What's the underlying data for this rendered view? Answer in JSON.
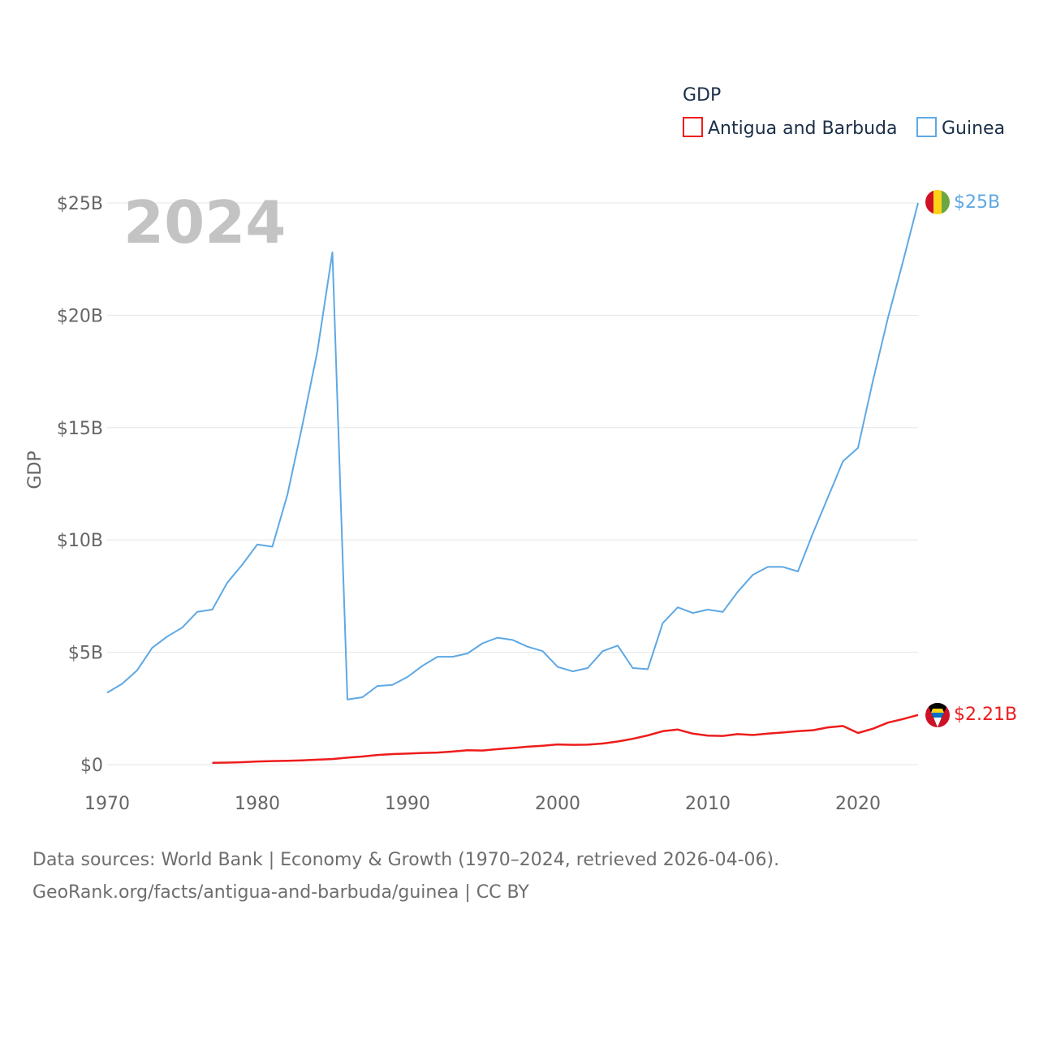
{
  "chart_data": {
    "type": "line",
    "legend_title": "GDP",
    "ylabel": "GDP",
    "year_label": "2024",
    "ylim": [
      0,
      25000000000
    ],
    "xlim": [
      1970,
      2024
    ],
    "y_ticks": [
      {
        "value": 0,
        "label": "$0"
      },
      {
        "value": 5000000000,
        "label": "$5B"
      },
      {
        "value": 10000000000,
        "label": "$10B"
      },
      {
        "value": 15000000000,
        "label": "$15B"
      },
      {
        "value": 20000000000,
        "label": "$20B"
      },
      {
        "value": 25000000000,
        "label": "$25B"
      }
    ],
    "x_ticks": [
      {
        "value": 1970,
        "label": "1970"
      },
      {
        "value": 1980,
        "label": "1980"
      },
      {
        "value": 1990,
        "label": "1990"
      },
      {
        "value": 2000,
        "label": "2000"
      },
      {
        "value": 2010,
        "label": "2010"
      },
      {
        "value": 2020,
        "label": "2020"
      }
    ],
    "series": [
      {
        "name": "Antigua and Barbuda",
        "color": "#ee1c1c",
        "end_label": "$2.21B",
        "flag": "antigua-and-barbuda-flag-icon",
        "x": [
          1977,
          1978,
          1979,
          1980,
          1981,
          1982,
          1983,
          1984,
          1985,
          1986,
          1987,
          1988,
          1989,
          1990,
          1991,
          1992,
          1993,
          1994,
          1995,
          1996,
          1997,
          1998,
          1999,
          2000,
          2001,
          2002,
          2003,
          2004,
          2005,
          2006,
          2007,
          2008,
          2009,
          2010,
          2011,
          2012,
          2013,
          2014,
          2015,
          2016,
          2017,
          2018,
          2019,
          2020,
          2021,
          2022,
          2023,
          2024
        ],
        "values": [
          0.08,
          0.09,
          0.11,
          0.14,
          0.16,
          0.17,
          0.19,
          0.22,
          0.25,
          0.31,
          0.36,
          0.43,
          0.47,
          0.49,
          0.52,
          0.54,
          0.58,
          0.64,
          0.63,
          0.69,
          0.74,
          0.8,
          0.84,
          0.9,
          0.88,
          0.89,
          0.94,
          1.03,
          1.15,
          1.3,
          1.49,
          1.56,
          1.38,
          1.29,
          1.28,
          1.36,
          1.32,
          1.38,
          1.43,
          1.49,
          1.53,
          1.66,
          1.72,
          1.41,
          1.6,
          1.87,
          2.03,
          2.21
        ],
        "unit": "billion USD"
      },
      {
        "name": "Guinea",
        "color": "#5ea8e4",
        "end_label": "$25B",
        "flag": "guinea-flag-icon",
        "x": [
          1970,
          1971,
          1972,
          1973,
          1974,
          1975,
          1976,
          1977,
          1978,
          1979,
          1980,
          1981,
          1982,
          1983,
          1984,
          1985,
          1986,
          1987,
          1988,
          1989,
          1990,
          1991,
          1992,
          1993,
          1994,
          1995,
          1996,
          1997,
          1998,
          1999,
          2000,
          2001,
          2002,
          2003,
          2004,
          2005,
          2006,
          2007,
          2008,
          2009,
          2010,
          2011,
          2012,
          2013,
          2014,
          2015,
          2016,
          2017,
          2018,
          2019,
          2020,
          2021,
          2022,
          2023,
          2024
        ],
        "values": [
          3.2,
          3.6,
          4.2,
          5.2,
          5.7,
          6.1,
          6.8,
          6.9,
          8.1,
          8.9,
          9.8,
          9.7,
          12.0,
          15.1,
          18.4,
          22.8,
          2.9,
          3.0,
          3.5,
          3.55,
          3.9,
          4.4,
          4.8,
          4.8,
          4.95,
          5.4,
          5.65,
          5.55,
          5.25,
          5.05,
          4.35,
          4.15,
          4.3,
          5.05,
          5.3,
          4.3,
          4.25,
          6.3,
          7.0,
          6.75,
          6.9,
          6.8,
          7.7,
          8.45,
          8.8,
          8.8,
          8.6,
          10.3,
          11.9,
          13.5,
          14.1,
          17.1,
          19.9,
          22.4,
          25.0
        ],
        "unit": "billion USD"
      }
    ]
  },
  "footer": {
    "line1": "Data sources: World Bank | Economy & Growth (1970–2024, retrieved 2026-04-06).",
    "line2": "GeoRank.org/facts/antigua-and-barbuda/guinea | CC BY"
  }
}
